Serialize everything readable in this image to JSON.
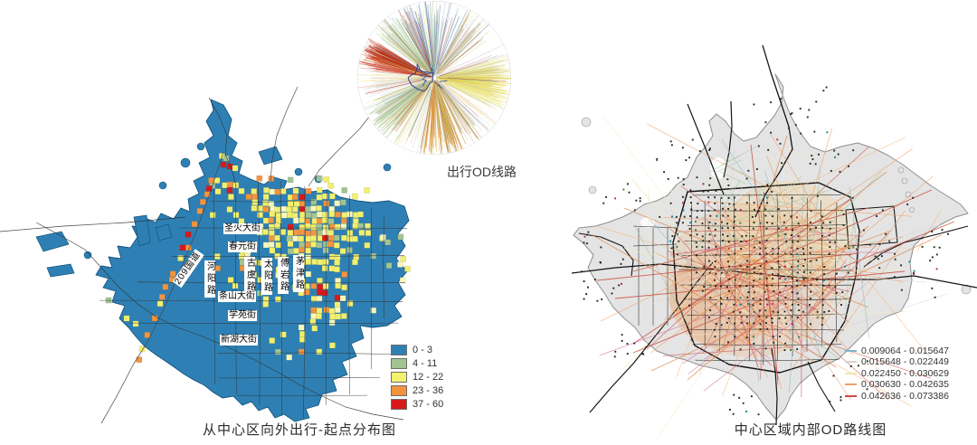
{
  "od_circle": {
    "label": "出行OD线路"
  },
  "left_map": {
    "caption": "从中心区向外出行-起点分布图",
    "region_color": "#2e80b4",
    "road_labels": [
      {
        "label": "圣火大街"
      },
      {
        "label": "春元街"
      },
      {
        "label": "209国道"
      },
      {
        "label": "河阳路"
      },
      {
        "label": "古虞路"
      },
      {
        "label": "太阳路"
      },
      {
        "label": "傅岩路"
      },
      {
        "label": "茅津路"
      },
      {
        "label": "条山大街"
      },
      {
        "label": "学苑街"
      },
      {
        "label": "新湖大街"
      }
    ],
    "legend": [
      {
        "label": "0 - 3",
        "color": "#2e80b4"
      },
      {
        "label": "4 - 11",
        "color": "#a3c491"
      },
      {
        "label": "12 - 22",
        "color": "#f3f06e"
      },
      {
        "label": "23 - 36",
        "color": "#f2923c"
      },
      {
        "label": "37 - 60",
        "color": "#d7191c"
      }
    ]
  },
  "right_map": {
    "caption": "中心区域内部OD路线图",
    "region_color": "#e4e4e4",
    "legend": [
      {
        "label": "0.009064 - 0.015647",
        "color": "#7fb4c9"
      },
      {
        "label": "0.015648 - 0.022449",
        "color": "#d2d2d2"
      },
      {
        "label": "0.022450 - 0.030629",
        "color": "#f0e6b0"
      },
      {
        "label": "0.030630 - 0.042635",
        "color": "#f0a169"
      },
      {
        "label": "0.042636 - 0.073386",
        "color": "#cf4a44"
      }
    ]
  }
}
